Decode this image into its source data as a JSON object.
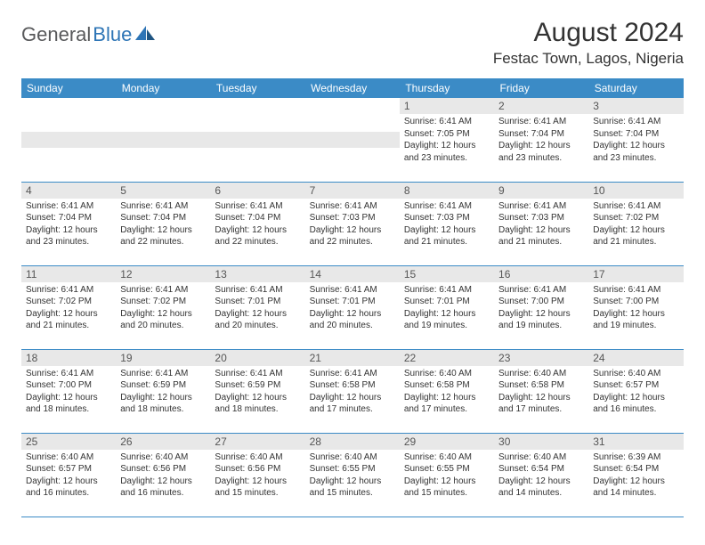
{
  "logo": {
    "text1": "General",
    "text2": "Blue"
  },
  "header": {
    "monthTitle": "August 2024",
    "location": "Festac Town, Lagos, Nigeria"
  },
  "dayNames": [
    "Sunday",
    "Monday",
    "Tuesday",
    "Wednesday",
    "Thursday",
    "Friday",
    "Saturday"
  ],
  "colors": {
    "headerBg": "#3b8bc6",
    "dayNumBg": "#e8e8e8",
    "border": "#3b8bc6"
  },
  "weeks": [
    [
      null,
      null,
      null,
      null,
      {
        "num": "1",
        "sunrise": "6:41 AM",
        "sunset": "7:05 PM",
        "daylight": "12 hours and 23 minutes."
      },
      {
        "num": "2",
        "sunrise": "6:41 AM",
        "sunset": "7:04 PM",
        "daylight": "12 hours and 23 minutes."
      },
      {
        "num": "3",
        "sunrise": "6:41 AM",
        "sunset": "7:04 PM",
        "daylight": "12 hours and 23 minutes."
      }
    ],
    [
      {
        "num": "4",
        "sunrise": "6:41 AM",
        "sunset": "7:04 PM",
        "daylight": "12 hours and 23 minutes."
      },
      {
        "num": "5",
        "sunrise": "6:41 AM",
        "sunset": "7:04 PM",
        "daylight": "12 hours and 22 minutes."
      },
      {
        "num": "6",
        "sunrise": "6:41 AM",
        "sunset": "7:04 PM",
        "daylight": "12 hours and 22 minutes."
      },
      {
        "num": "7",
        "sunrise": "6:41 AM",
        "sunset": "7:03 PM",
        "daylight": "12 hours and 22 minutes."
      },
      {
        "num": "8",
        "sunrise": "6:41 AM",
        "sunset": "7:03 PM",
        "daylight": "12 hours and 21 minutes."
      },
      {
        "num": "9",
        "sunrise": "6:41 AM",
        "sunset": "7:03 PM",
        "daylight": "12 hours and 21 minutes."
      },
      {
        "num": "10",
        "sunrise": "6:41 AM",
        "sunset": "7:02 PM",
        "daylight": "12 hours and 21 minutes."
      }
    ],
    [
      {
        "num": "11",
        "sunrise": "6:41 AM",
        "sunset": "7:02 PM",
        "daylight": "12 hours and 21 minutes."
      },
      {
        "num": "12",
        "sunrise": "6:41 AM",
        "sunset": "7:02 PM",
        "daylight": "12 hours and 20 minutes."
      },
      {
        "num": "13",
        "sunrise": "6:41 AM",
        "sunset": "7:01 PM",
        "daylight": "12 hours and 20 minutes."
      },
      {
        "num": "14",
        "sunrise": "6:41 AM",
        "sunset": "7:01 PM",
        "daylight": "12 hours and 20 minutes."
      },
      {
        "num": "15",
        "sunrise": "6:41 AM",
        "sunset": "7:01 PM",
        "daylight": "12 hours and 19 minutes."
      },
      {
        "num": "16",
        "sunrise": "6:41 AM",
        "sunset": "7:00 PM",
        "daylight": "12 hours and 19 minutes."
      },
      {
        "num": "17",
        "sunrise": "6:41 AM",
        "sunset": "7:00 PM",
        "daylight": "12 hours and 19 minutes."
      }
    ],
    [
      {
        "num": "18",
        "sunrise": "6:41 AM",
        "sunset": "7:00 PM",
        "daylight": "12 hours and 18 minutes."
      },
      {
        "num": "19",
        "sunrise": "6:41 AM",
        "sunset": "6:59 PM",
        "daylight": "12 hours and 18 minutes."
      },
      {
        "num": "20",
        "sunrise": "6:41 AM",
        "sunset": "6:59 PM",
        "daylight": "12 hours and 18 minutes."
      },
      {
        "num": "21",
        "sunrise": "6:41 AM",
        "sunset": "6:58 PM",
        "daylight": "12 hours and 17 minutes."
      },
      {
        "num": "22",
        "sunrise": "6:40 AM",
        "sunset": "6:58 PM",
        "daylight": "12 hours and 17 minutes."
      },
      {
        "num": "23",
        "sunrise": "6:40 AM",
        "sunset": "6:58 PM",
        "daylight": "12 hours and 17 minutes."
      },
      {
        "num": "24",
        "sunrise": "6:40 AM",
        "sunset": "6:57 PM",
        "daylight": "12 hours and 16 minutes."
      }
    ],
    [
      {
        "num": "25",
        "sunrise": "6:40 AM",
        "sunset": "6:57 PM",
        "daylight": "12 hours and 16 minutes."
      },
      {
        "num": "26",
        "sunrise": "6:40 AM",
        "sunset": "6:56 PM",
        "daylight": "12 hours and 16 minutes."
      },
      {
        "num": "27",
        "sunrise": "6:40 AM",
        "sunset": "6:56 PM",
        "daylight": "12 hours and 15 minutes."
      },
      {
        "num": "28",
        "sunrise": "6:40 AM",
        "sunset": "6:55 PM",
        "daylight": "12 hours and 15 minutes."
      },
      {
        "num": "29",
        "sunrise": "6:40 AM",
        "sunset": "6:55 PM",
        "daylight": "12 hours and 15 minutes."
      },
      {
        "num": "30",
        "sunrise": "6:40 AM",
        "sunset": "6:54 PM",
        "daylight": "12 hours and 14 minutes."
      },
      {
        "num": "31",
        "sunrise": "6:39 AM",
        "sunset": "6:54 PM",
        "daylight": "12 hours and 14 minutes."
      }
    ]
  ],
  "labels": {
    "sunrise": "Sunrise:",
    "sunset": "Sunset:",
    "daylight": "Daylight:"
  }
}
